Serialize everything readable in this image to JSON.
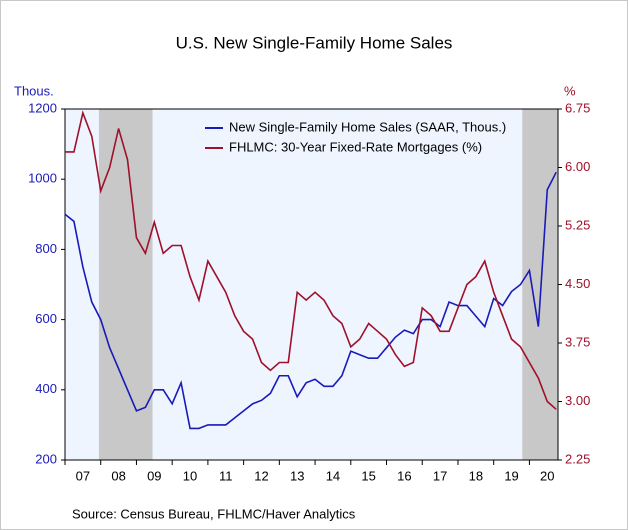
{
  "chart_data": {
    "type": "line",
    "title": "U.S. New Single-Family Home Sales",
    "y_label": "Thous.",
    "y2_label": "%",
    "source": "Source: Census Bureau, FHLMC/Haver Analytics",
    "x": [
      2007.0,
      2007.25,
      2007.5,
      2007.75,
      2008.0,
      2008.25,
      2008.5,
      2008.75,
      2009.0,
      2009.25,
      2009.5,
      2009.75,
      2010.0,
      2010.25,
      2010.5,
      2010.75,
      2011.0,
      2011.25,
      2011.5,
      2011.75,
      2012.0,
      2012.25,
      2012.5,
      2012.75,
      2013.0,
      2013.25,
      2013.5,
      2013.75,
      2014.0,
      2014.25,
      2014.5,
      2014.75,
      2015.0,
      2015.25,
      2015.5,
      2015.75,
      2016.0,
      2016.25,
      2016.5,
      2016.75,
      2017.0,
      2017.25,
      2017.5,
      2017.75,
      2018.0,
      2018.25,
      2018.5,
      2018.75,
      2019.0,
      2019.25,
      2019.5,
      2019.75,
      2020.0,
      2020.25,
      2020.5,
      2020.75
    ],
    "xlim": [
      2007.0,
      2020.8
    ],
    "xticks": [
      {
        "value": 2007,
        "label": "07"
      },
      {
        "value": 2008,
        "label": "08"
      },
      {
        "value": 2009,
        "label": "09"
      },
      {
        "value": 2010,
        "label": "10"
      },
      {
        "value": 2011,
        "label": "11"
      },
      {
        "value": 2012,
        "label": "12"
      },
      {
        "value": 2013,
        "label": "13"
      },
      {
        "value": 2014,
        "label": "14"
      },
      {
        "value": 2015,
        "label": "15"
      },
      {
        "value": 2016,
        "label": "16"
      },
      {
        "value": 2017,
        "label": "17"
      },
      {
        "value": 2018,
        "label": "18"
      },
      {
        "value": 2019,
        "label": "19"
      },
      {
        "value": 2020,
        "label": "20"
      }
    ],
    "ylim": [
      200,
      1200
    ],
    "yticks": [
      200,
      400,
      600,
      800,
      1000,
      1200
    ],
    "y2lim": [
      2.25,
      6.75
    ],
    "y2ticks": [
      {
        "value": 2.25,
        "label": "2.25"
      },
      {
        "value": 3.0,
        "label": "3.00"
      },
      {
        "value": 3.75,
        "label": "3.75"
      },
      {
        "value": 4.5,
        "label": "4.50"
      },
      {
        "value": 5.25,
        "label": "5.25"
      },
      {
        "value": 6.0,
        "label": "6.00"
      },
      {
        "value": 6.75,
        "label": "6.75"
      }
    ],
    "recessions": [
      [
        2007.95,
        2009.45
      ],
      [
        2019.8,
        2020.8
      ]
    ],
    "recession_color": "#c8c8c8",
    "legend": "upper right",
    "series": [
      {
        "name": "New Single-Family Home Sales (SAAR, Thous.)",
        "color": "#1a1ab8",
        "values": [
          900,
          880,
          750,
          650,
          600,
          520,
          460,
          400,
          340,
          350,
          400,
          400,
          360,
          420,
          290,
          290,
          300,
          300,
          300,
          320,
          340,
          360,
          370,
          390,
          440,
          440,
          380,
          420,
          430,
          410,
          410,
          440,
          510,
          500,
          490,
          490,
          520,
          550,
          570,
          560,
          600,
          600,
          580,
          650,
          640,
          640,
          610,
          580,
          660,
          640,
          680,
          700,
          740,
          580,
          970,
          1020
        ]
      },
      {
        "name": "FHLMC: 30-Year Fixed-Rate Mortgages (%)",
        "color": "#a0102a",
        "axis": "y2",
        "values": [
          6.2,
          6.2,
          6.7,
          6.4,
          5.7,
          6.0,
          6.5,
          6.1,
          5.1,
          4.9,
          5.3,
          4.9,
          5.0,
          5.0,
          4.6,
          4.3,
          4.8,
          4.6,
          4.4,
          4.1,
          3.9,
          3.8,
          3.5,
          3.4,
          3.5,
          3.5,
          4.4,
          4.3,
          4.4,
          4.3,
          4.1,
          4.0,
          3.7,
          3.8,
          4.0,
          3.9,
          3.8,
          3.6,
          3.45,
          3.5,
          4.2,
          4.1,
          3.9,
          3.9,
          4.2,
          4.5,
          4.6,
          4.8,
          4.4,
          4.1,
          3.8,
          3.7,
          3.5,
          3.3,
          3.0,
          2.9
        ]
      }
    ]
  }
}
